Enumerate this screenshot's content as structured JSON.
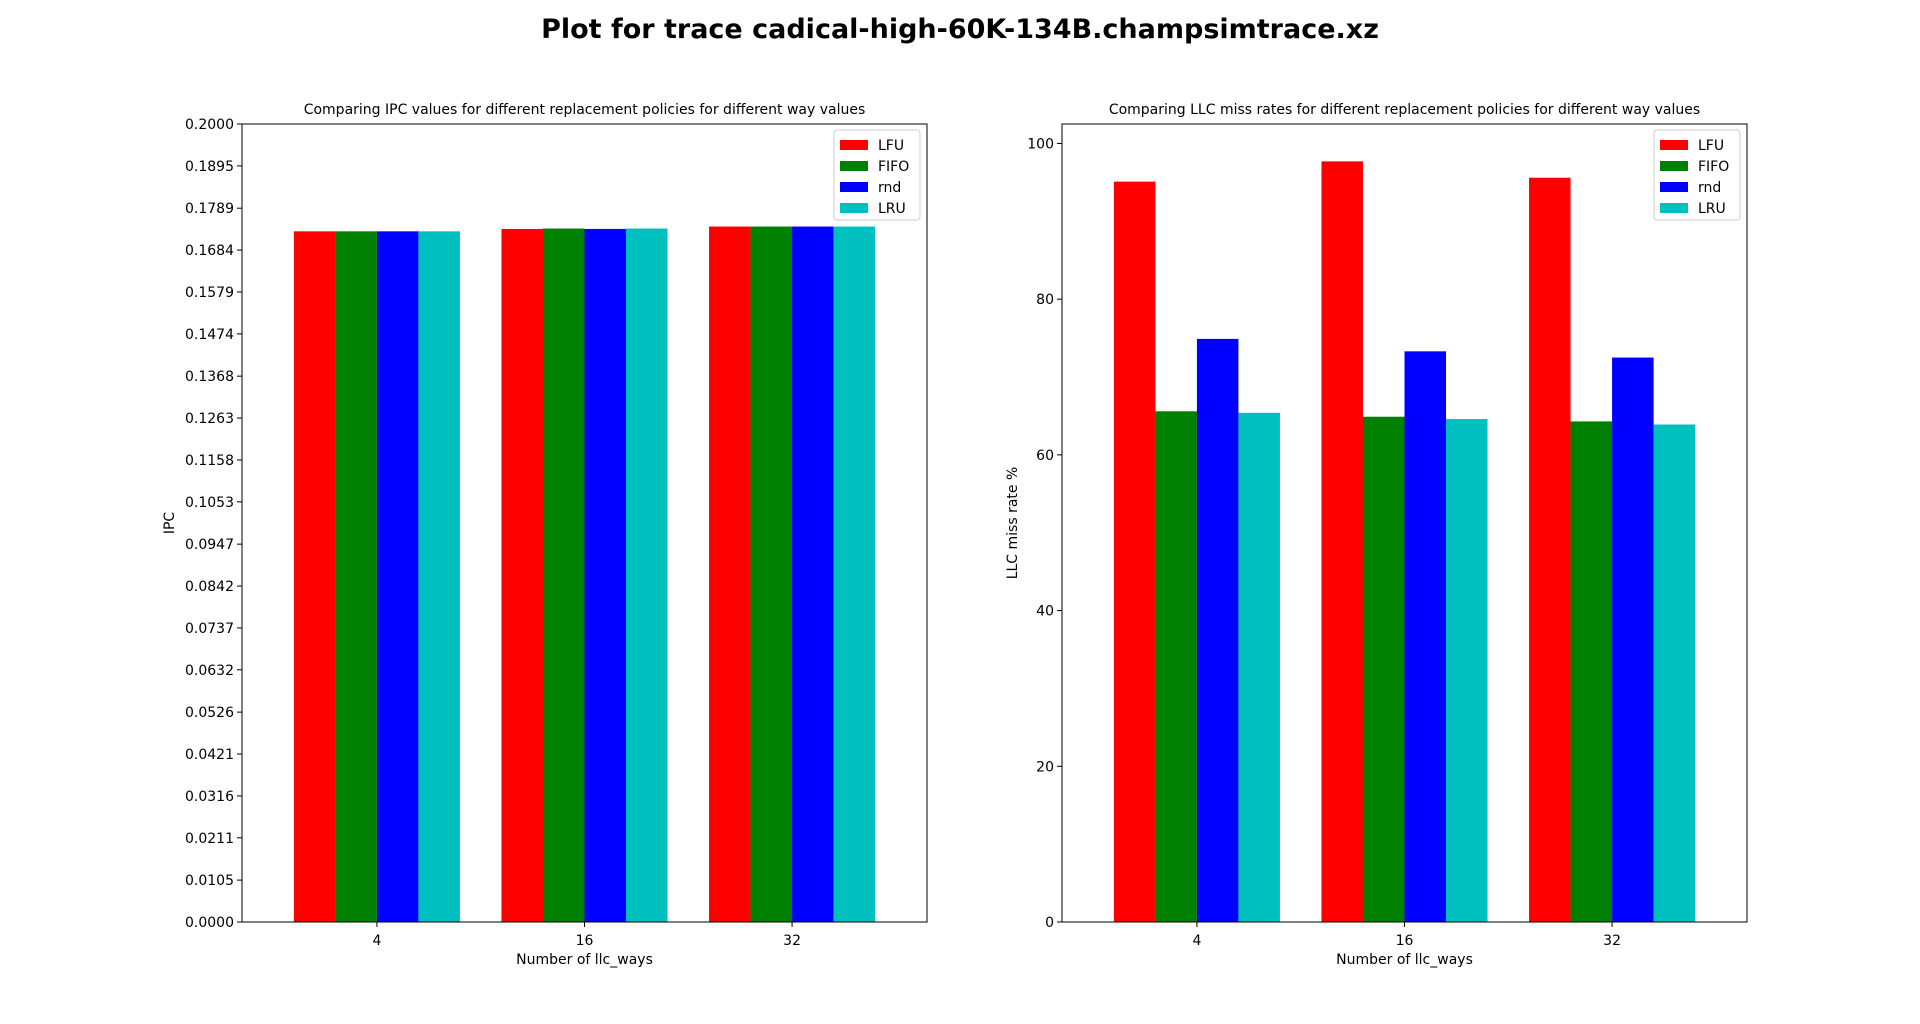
{
  "figure_title": "Plot for trace cadical-high-60K-134B.champsimtrace.xz",
  "chart_data": [
    {
      "type": "bar",
      "title": "Comparing IPC values for different replacement policies for different way values",
      "xlabel": "Number of llc_ways",
      "ylabel": "IPC",
      "categories": [
        "4",
        "16",
        "32"
      ],
      "ylim": [
        0,
        0.2
      ],
      "yticks": [
        "0.0000",
        "0.0105",
        "0.0211",
        "0.0316",
        "0.0421",
        "0.0526",
        "0.0632",
        "0.0737",
        "0.0842",
        "0.0947",
        "0.1053",
        "0.1158",
        "0.1263",
        "0.1368",
        "0.1474",
        "0.1579",
        "0.1684",
        "0.1789",
        "0.1895",
        "0.2000"
      ],
      "legend_position": "top-right",
      "grid": false,
      "series": [
        {
          "name": "LFU",
          "color": "#ff0000",
          "values": [
            0.1731,
            0.1737,
            0.1743
          ]
        },
        {
          "name": "FIFO",
          "color": "#008000",
          "values": [
            0.1731,
            0.1738,
            0.1743
          ]
        },
        {
          "name": "rnd",
          "color": "#0000ff",
          "values": [
            0.1731,
            0.1737,
            0.1743
          ]
        },
        {
          "name": "LRU",
          "color": "#00bfbf",
          "values": [
            0.1731,
            0.1738,
            0.1743
          ]
        }
      ]
    },
    {
      "type": "bar",
      "title": "Comparing LLC miss rates for different replacement policies for different way values",
      "xlabel": "Number of llc_ways",
      "ylabel": "LLC miss rate %",
      "categories": [
        "4",
        "16",
        "32"
      ],
      "ylim": [
        0,
        102.5
      ],
      "yticks": [
        "0",
        "20",
        "40",
        "60",
        "80",
        "100"
      ],
      "legend_position": "top-right",
      "grid": false,
      "series": [
        {
          "name": "LFU",
          "color": "#ff0000",
          "values": [
            95.1,
            97.7,
            95.6
          ]
        },
        {
          "name": "FIFO",
          "color": "#008000",
          "values": [
            65.6,
            64.9,
            64.3
          ]
        },
        {
          "name": "rnd",
          "color": "#0000ff",
          "values": [
            74.9,
            73.3,
            72.5
          ]
        },
        {
          "name": "LRU",
          "color": "#00bfbf",
          "values": [
            65.4,
            64.6,
            63.9
          ]
        }
      ]
    }
  ]
}
